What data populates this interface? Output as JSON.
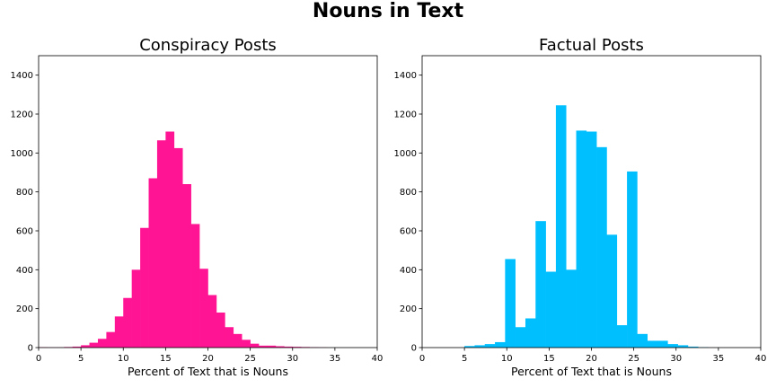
{
  "figure": {
    "suptitle": "Nouns in Text"
  },
  "chart_data": [
    {
      "type": "bar",
      "title": "Conspiracy Posts",
      "xlabel": "Percent of Text that is Nouns",
      "ylabel": "",
      "xlim": [
        0,
        40
      ],
      "ylim": [
        0,
        1500
      ],
      "xticks": [
        0,
        5,
        10,
        15,
        20,
        25,
        30,
        35,
        40
      ],
      "yticks": [
        0,
        200,
        400,
        600,
        800,
        1000,
        1200,
        1400
      ],
      "color": "#ff1493",
      "bin_width": 1,
      "bin_edges_start": [
        0,
        1,
        2,
        3,
        4,
        5,
        6,
        7,
        8,
        9,
        10,
        11,
        12,
        13,
        14,
        15,
        16,
        17,
        18,
        19,
        20,
        21,
        22,
        23,
        24,
        25,
        26,
        27,
        28,
        29,
        30,
        31,
        32,
        33
      ],
      "values": [
        2,
        1,
        1,
        3,
        5,
        12,
        25,
        45,
        80,
        160,
        255,
        400,
        615,
        870,
        1065,
        1110,
        1025,
        840,
        635,
        405,
        270,
        180,
        105,
        70,
        40,
        20,
        10,
        10,
        7,
        5,
        4,
        3,
        2,
        1
      ]
    },
    {
      "type": "bar",
      "title": "Factual Posts",
      "xlabel": "Percent of Text that is Nouns",
      "ylabel": "",
      "xlim": [
        0,
        40
      ],
      "ylim": [
        0,
        1500
      ],
      "xticks": [
        0,
        5,
        10,
        15,
        20,
        25,
        30,
        35,
        40
      ],
      "yticks": [
        0,
        200,
        400,
        600,
        800,
        1000,
        1200,
        1400
      ],
      "color": "#00bfff",
      "bin_width": 1.2,
      "bin_edges_start": [
        5,
        6.2,
        7.4,
        8.6,
        9.8,
        11,
        12.2,
        13.4,
        14.6,
        15.8,
        17,
        18.2,
        19.4,
        20.6,
        21.8,
        23,
        24.2,
        25.4,
        26.6,
        27.8,
        29,
        30.2,
        31.4,
        32.6
      ],
      "values": [
        8,
        12,
        18,
        28,
        455,
        105,
        150,
        650,
        390,
        1245,
        400,
        1115,
        1110,
        1030,
        580,
        115,
        905,
        70,
        35,
        35,
        18,
        12,
        5,
        2
      ]
    }
  ]
}
